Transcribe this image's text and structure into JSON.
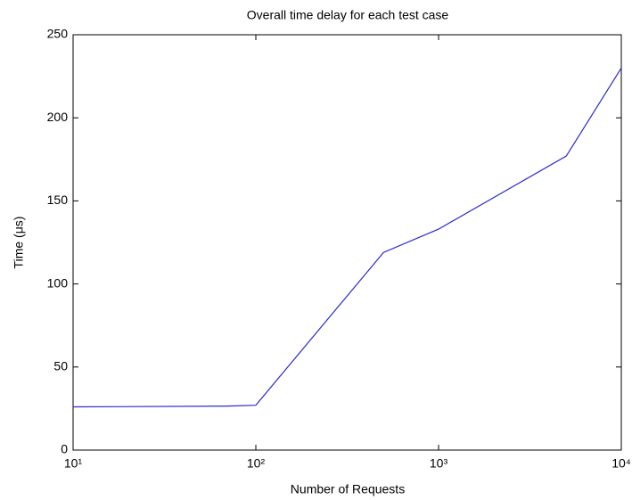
{
  "chart_data": {
    "type": "line",
    "title": "Overall time delay for each test case",
    "x_label": "Number of Requests",
    "y_label": "Time (μs)",
    "x": [
      10,
      70,
      100,
      500,
      1000,
      5000,
      10000
    ],
    "series": [
      {
        "name": "Time delay",
        "color": "#2a2ad0",
        "values": [
          26,
          26.5,
          27,
          119,
          133,
          177,
          230
        ]
      }
    ],
    "xscale": "log",
    "xlim": [
      10,
      10000
    ],
    "xticks": [
      {
        "value": 10,
        "label": "10¹"
      },
      {
        "value": 100,
        "label": "10²"
      },
      {
        "value": 1000,
        "label": "10³"
      },
      {
        "value": 10000,
        "label": "10⁴"
      }
    ],
    "ylim": [
      0,
      250
    ],
    "yticks": [
      0,
      50,
      100,
      150,
      200,
      250
    ],
    "grid": false
  }
}
